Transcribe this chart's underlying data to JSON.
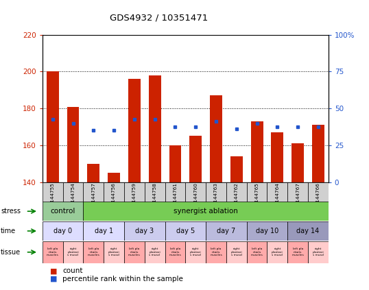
{
  "title": "GDS4932 / 10351471",
  "samples": [
    "GSM1144755",
    "GSM1144754",
    "GSM1144757",
    "GSM1144756",
    "GSM1144759",
    "GSM1144758",
    "GSM1144761",
    "GSM1144760",
    "GSM1144763",
    "GSM1144762",
    "GSM1144765",
    "GSM1144764",
    "GSM1144767",
    "GSM1144766"
  ],
  "bar_heights": [
    200,
    181,
    150,
    145,
    196,
    198,
    160,
    165,
    187,
    154,
    173,
    167,
    161,
    171
  ],
  "bar_bottom": 140,
  "blue_y": [
    174,
    172,
    168,
    168,
    174,
    174,
    170,
    170,
    173,
    169,
    172,
    170,
    170,
    170
  ],
  "ylim": [
    140,
    220
  ],
  "y2lim": [
    0,
    100
  ],
  "yticks_left": [
    140,
    160,
    180,
    200,
    220
  ],
  "yticks_right": [
    0,
    25,
    50,
    75,
    100
  ],
  "y2ticklabels": [
    "0",
    "25",
    "50",
    "75",
    "100%"
  ],
  "bar_color": "#cc2200",
  "blue_color": "#2255cc",
  "stress_control_color": "#99cc99",
  "stress_ablation_color": "#77cc55",
  "time_colors": [
    "#ddddff",
    "#ddddff",
    "#ccccee",
    "#ccccee",
    "#bbbbdd",
    "#aaaacc",
    "#9999bb"
  ],
  "tissue_left_color": "#ffaaaa",
  "tissue_right_color": "#ffcccc",
  "legend_count_color": "#cc2200",
  "legend_pct_color": "#2255cc",
  "time_groups": [
    {
      "text": "day 0",
      "span": 2
    },
    {
      "text": "day 1",
      "span": 2
    },
    {
      "text": "day 3",
      "span": 2
    },
    {
      "text": "day 5",
      "span": 2
    },
    {
      "text": "day 7",
      "span": 2
    },
    {
      "text": "day 10",
      "span": 2
    },
    {
      "text": "day 14",
      "span": 2
    }
  ]
}
